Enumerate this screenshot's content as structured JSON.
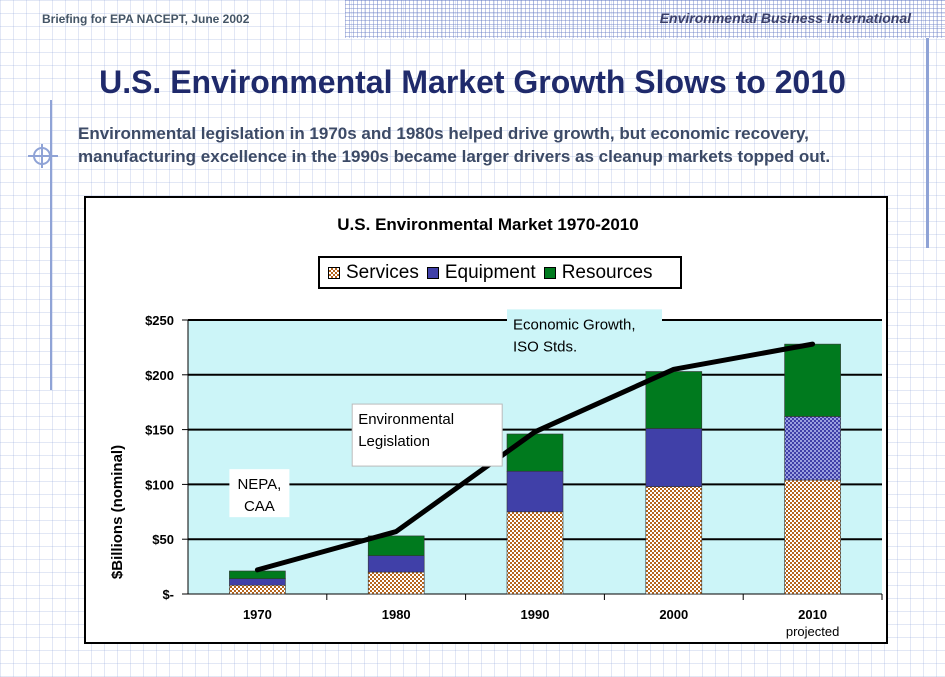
{
  "header": {
    "left_text": "Briefing for EPA NACEPT, June 2002",
    "right_text": "Environmental Business International"
  },
  "slide": {
    "title": "U.S. Environmental Market Growth Slows to 2010",
    "subtitle": "Environmental legislation in 1970s and 1980s helped drive growth, but economic recovery, manufacturing excellence in the 1990s became larger drivers as cleanup markets topped out."
  },
  "colors": {
    "services": "#b5651d",
    "equipment": "#4040a8",
    "resources": "#007a1e",
    "plot_bg": "#ccf5f8",
    "trend_line": "#000000"
  },
  "chart_data": {
    "type": "bar",
    "stacked": true,
    "title": "U.S. Environmental Market 1970-2010",
    "ylabel": "$Billions (nominal)",
    "xlabel": "",
    "categories": [
      "1970",
      "1980",
      "1990",
      "2000",
      "2010"
    ],
    "category_sublabels": [
      "",
      "",
      "",
      "",
      "projected"
    ],
    "ylim": [
      0,
      250
    ],
    "yticks": [
      0,
      50,
      100,
      150,
      200,
      250
    ],
    "ytick_labels": [
      "$-",
      "$50",
      "$100",
      "$150",
      "$200",
      "$250"
    ],
    "grid": "horizontal",
    "series": [
      {
        "name": "Services",
        "values": [
          8,
          20,
          75,
          98,
          104
        ]
      },
      {
        "name": "Equipment",
        "values": [
          6,
          15,
          37,
          53,
          58
        ]
      },
      {
        "name": "Resources",
        "values": [
          7,
          18,
          34,
          52,
          66
        ]
      }
    ],
    "trend_line": [
      22,
      57,
      148,
      205,
      228
    ],
    "annotations": [
      {
        "text": "NEPA,\nCAA",
        "x": "1970",
        "y": 92
      },
      {
        "text": "Environmental\nLegislation",
        "x": "1980",
        "y": 145
      },
      {
        "text": "Economic Growth,\nISO Stds.",
        "x": "1990",
        "y": 236
      }
    ],
    "legend": "top-center"
  }
}
